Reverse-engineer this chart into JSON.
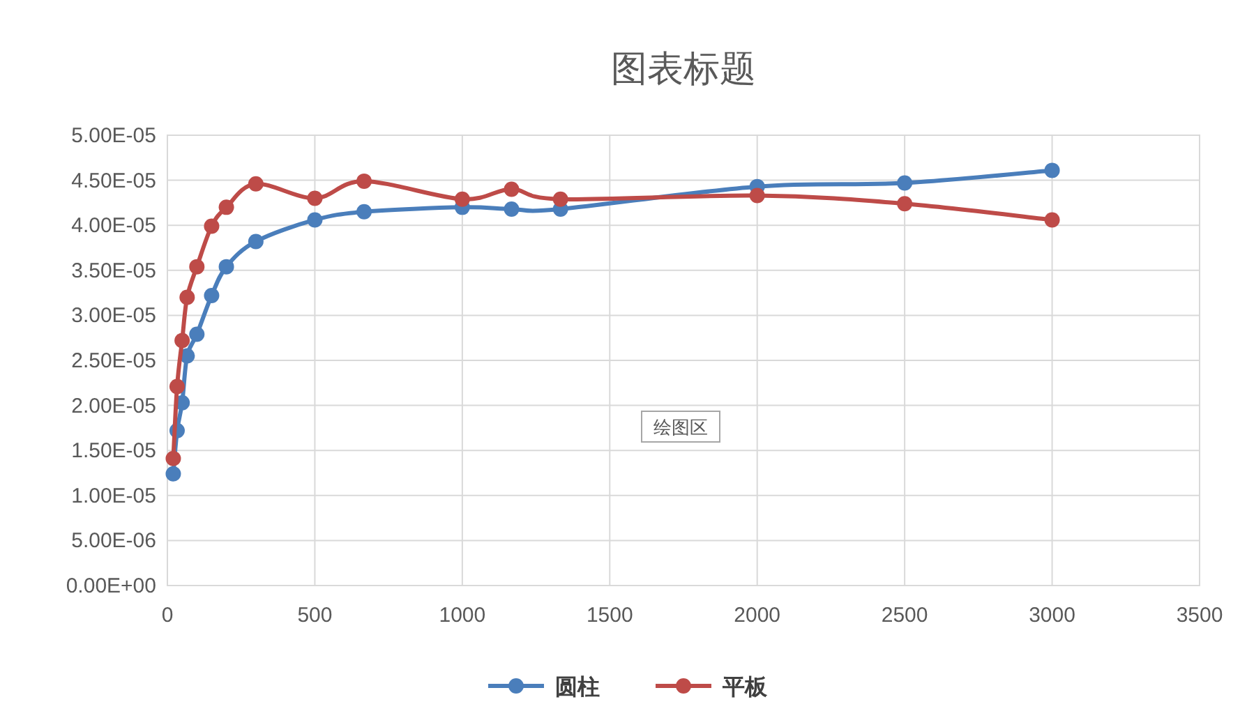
{
  "chart_data": {
    "type": "line",
    "title": "图表标题",
    "x": [
      20,
      33,
      50,
      67,
      100,
      150,
      200,
      300,
      500,
      667,
      1000,
      1167,
      1333,
      2000,
      2500,
      3000
    ],
    "series": [
      {
        "name": "圆柱",
        "color": "#4a7ebb",
        "values": [
          1.24e-05,
          1.72e-05,
          2.03e-05,
          2.55e-05,
          2.79e-05,
          3.22e-05,
          3.54e-05,
          3.82e-05,
          4.06e-05,
          4.15e-05,
          4.2e-05,
          4.18e-05,
          4.18e-05,
          4.43e-05,
          4.47e-05,
          4.61e-05
        ]
      },
      {
        "name": "平板",
        "color": "#be4b48",
        "values": [
          1.41e-05,
          2.21e-05,
          2.72e-05,
          3.2e-05,
          3.54e-05,
          3.99e-05,
          4.2e-05,
          4.46e-05,
          4.3e-05,
          4.49e-05,
          4.29e-05,
          4.4e-05,
          4.29e-05,
          4.33e-05,
          4.24e-05,
          4.06e-05
        ]
      }
    ],
    "xlim": [
      0,
      3500
    ],
    "xticks": [
      0,
      500,
      1000,
      1500,
      2000,
      2500,
      3000,
      3500
    ],
    "ylim": [
      0,
      5e-05
    ],
    "yticks": [
      {
        "value": 0,
        "label": "0.00E+00"
      },
      {
        "value": 5e-06,
        "label": "5.00E-06"
      },
      {
        "value": 1e-05,
        "label": "1.00E-05"
      },
      {
        "value": 1.5e-05,
        "label": "1.50E-05"
      },
      {
        "value": 2e-05,
        "label": "2.00E-05"
      },
      {
        "value": 2.5e-05,
        "label": "2.50E-05"
      },
      {
        "value": 3e-05,
        "label": "3.00E-05"
      },
      {
        "value": 3.5e-05,
        "label": "3.50E-05"
      },
      {
        "value": 4e-05,
        "label": "4.00E-05"
      },
      {
        "value": 4.5e-05,
        "label": "4.50E-05"
      },
      {
        "value": 5e-05,
        "label": "5.00E-05"
      }
    ],
    "grid": true,
    "legend": "bottom",
    "marker": "circle",
    "line_style": "solid",
    "annotations": [
      "绘图区"
    ]
  }
}
